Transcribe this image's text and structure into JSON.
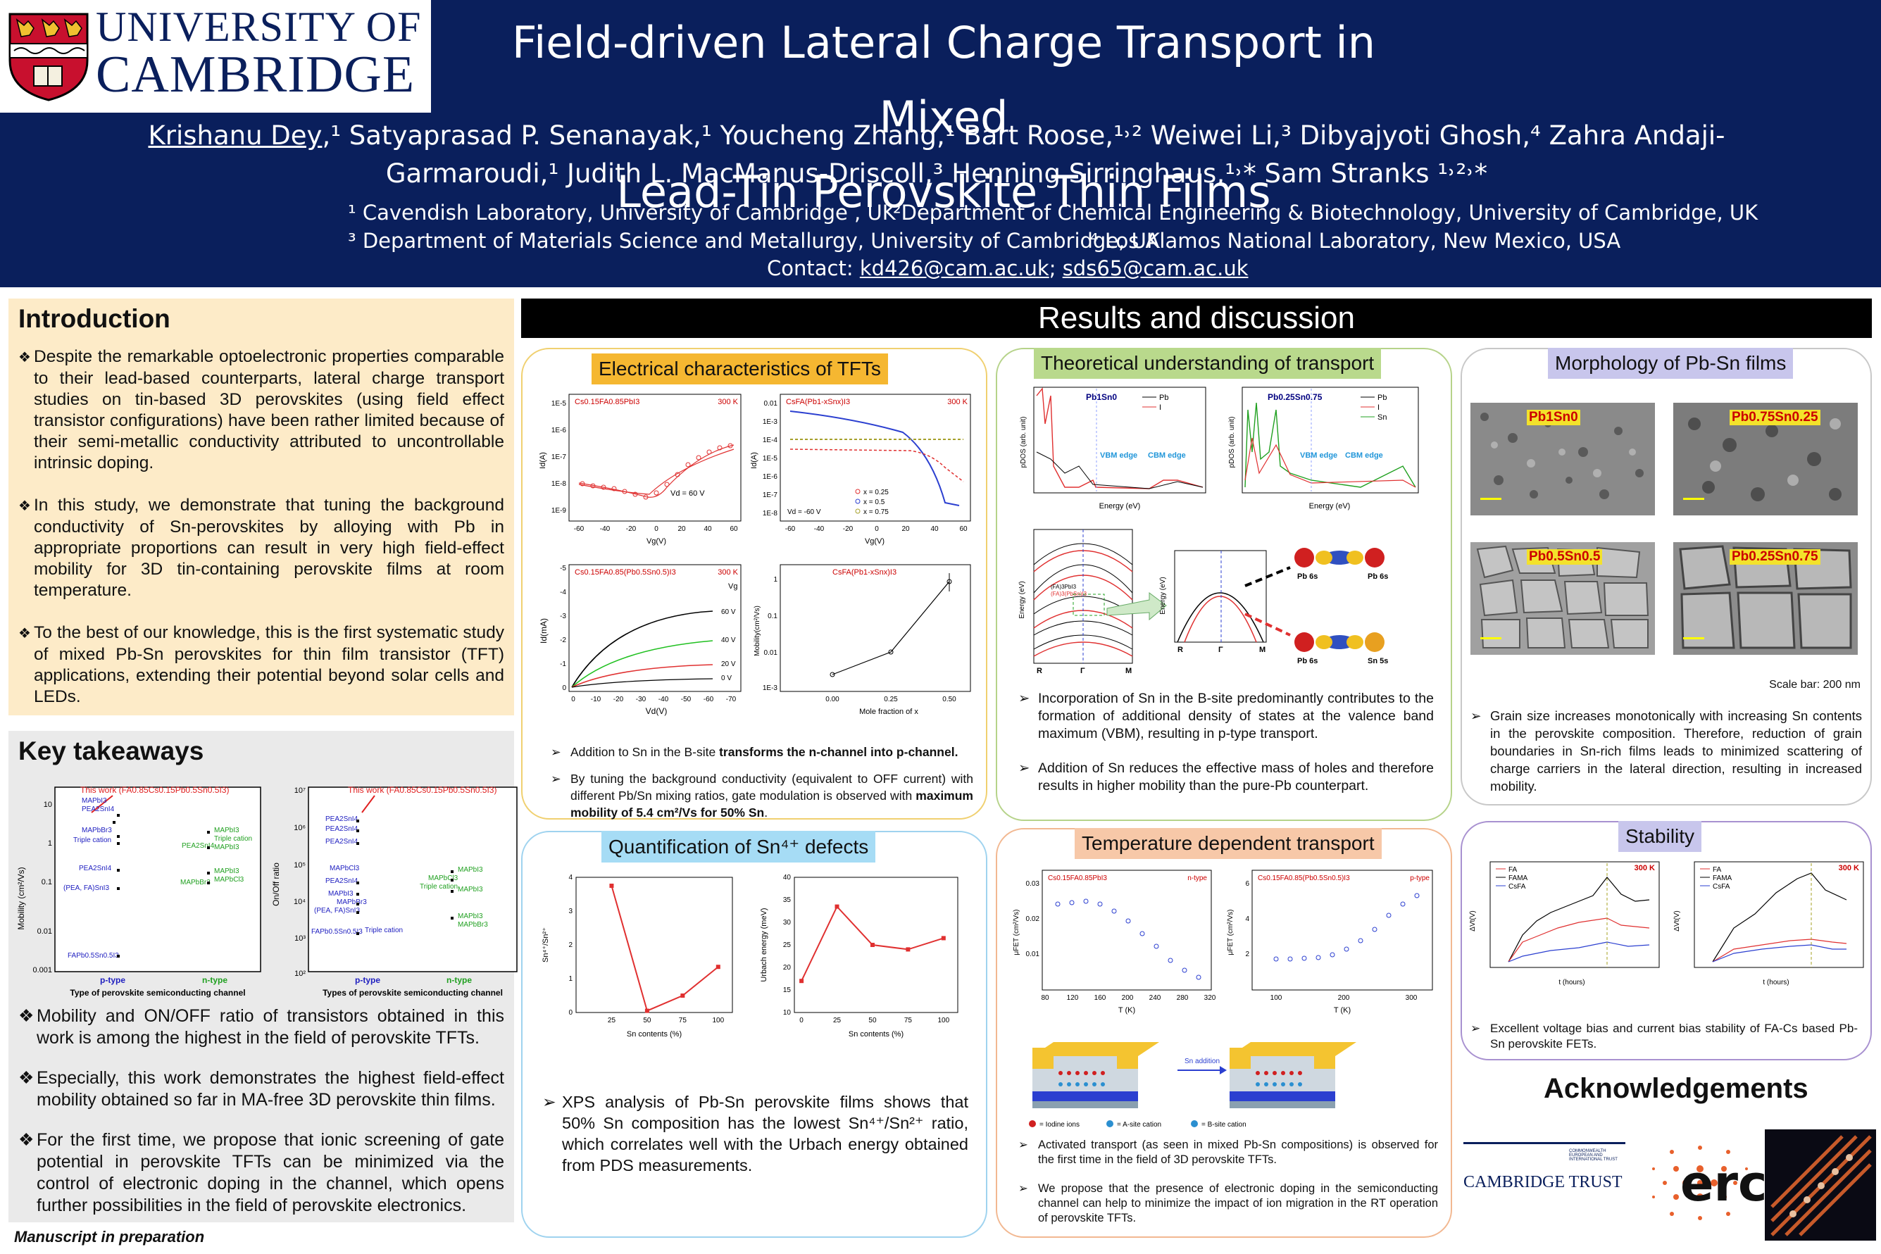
{
  "header": {
    "logo_line1": "UNIVERSITY OF",
    "logo_line2": "CAMBRIDGE",
    "title_line1": "Field-driven Lateral Charge Transport in Mixed",
    "title_line2": "Lead-Tin Perovskite Thin Films",
    "first_author": "Krishanu Dey",
    "authors_line1_rest": ",¹  Satyaprasad P. Senanayak,¹ Youcheng Zhang,¹ Bart Roose,¹˒² Weiwei Li,³ Dibyajyoti Ghosh,⁴ Zahra Andaji-",
    "authors_line2": "Garmaroudi,¹ Judith L. MacManus-Driscoll,³ Henning Sirringhaus,¹˒* Sam Stranks ¹˒²˒*",
    "affil1": "¹ Cavendish Laboratory, University of Cambridge , UK",
    "affil2": "²Department of Chemical Engineering & Biotechnology, University of Cambridge, UK",
    "affil3": "³ Department of Materials Science and Metallurgy, University of Cambridge, UK",
    "affil4": "⁴ Los Alamos National Laboratory, New Mexico, USA",
    "contact_label": "Contact: ",
    "email1": "kd426@cam.ac.uk",
    "email_sep": "; ",
    "email2": "sds65@cam.ac.uk"
  },
  "introduction": {
    "title": "Introduction",
    "bullets": [
      "Despite the remarkable optoelectronic properties comparable to their lead-based counterparts, lateral charge transport studies on tin-based 3D perovskites (using field effect transistor configurations) have been rather limited because of their semi-metallic conductivity attributed to uncontrollable intrinsic doping.",
      "In this study, we demonstrate that tuning the background conductivity of Sn-perovskites by alloying with Pb in appropriate proportions can result in very high field-effect mobility for 3D tin-containing perovskite films at room temperature.",
      "To the best of our knowledge, this is the first systematic study of mixed Pb-Sn perovskites for thin film transistor (TFT) applications, extending their potential beyond solar cells and LEDs."
    ]
  },
  "takeaways": {
    "title": "Key takeaways",
    "bullets": [
      "Mobility and ON/OFF ratio of transistors obtained in this work is among the highest in the field of perovskite TFTs.",
      "Especially, this work demonstrates the highest field-effect mobility obtained so far in MA-free 3D perovskite thin films.",
      "For the first time, we propose that ionic screening of gate potential in perovskite TFTs can be minimized via the control of electronic doping in the channel, which opens further possibilities in the field of perovskite electronics."
    ],
    "manuscript": "Manuscript in preparation",
    "chart_mobility": {
      "this_work": "This work (FA0.85Cs0.15Pb0.5Sn0.5I3)",
      "ylabel": "Mobility (cm²/Vs)",
      "xlabel": "Type of perovskite semiconducting channel",
      "x_ticks": [
        "p-type",
        "n-type"
      ],
      "y_ticks": [
        "10",
        "1",
        "0.1",
        "0.01",
        "0.001"
      ],
      "labels": [
        "MAPbI3",
        "PEA2SnI4",
        "MAPbBr3",
        "Triple cation",
        "PEA2SnI4",
        "(PEA, FA)SnI3",
        "FAPb0.5Sn0.5I3",
        "MAPbI3",
        "PEA2SnI4",
        "PEA2SnI4",
        "Triple cation",
        "MAPbI3",
        "MAPbCl3",
        "MAPbBr3"
      ]
    },
    "chart_onoff": {
      "this_work": "This work (FA0.85Cs0.15Pb0.5Sn0.5I3)",
      "ylabel": "On/Off ratio",
      "xlabel": "Types of perovskite semiconducting channel",
      "x_ticks": [
        "p-type",
        "n-type"
      ],
      "y_ticks": [
        "10⁷",
        "10⁶",
        "10⁵",
        "10⁴",
        "10³",
        "10²"
      ],
      "labels": [
        "PEA2SnI4",
        "PEA2SnI4",
        "PEA2SnI4",
        "MAPbCl3",
        "PEA2SnI4",
        "MAPbI3",
        "MAPbI3",
        "MAPbBr3",
        "(PEA, FA)SnI3",
        "FAPb0.5Sn0.5I3",
        "Triple cation",
        "MAPbI3",
        "MAPbCl3",
        "Triple cation",
        "MAPbI3",
        "MAPbI3",
        "MAPbBr3"
      ]
    }
  },
  "results": {
    "banner": "Results and discussion",
    "electrical": {
      "title": "Electrical characteristics of TFTs",
      "bullet1_pre": "Addition to Sn in the B-site ",
      "bullet1_bold": "transforms the n-channel into p-channel.",
      "bullet2_pre": "By tuning the background conductivity (equivalent to OFF current) with different Pb/Sn mixing ratios, gate modulation is observed with ",
      "bullet2_bold": "maximum mobility of 5.4 cm²/Vs for 50% Sn",
      "bullet2_post": ".",
      "plot1": {
        "label": "Cs0.15FA0.85PbI3",
        "temp": "300 K",
        "vd": "Vd = 60 V",
        "xlabel": "Vg(V)",
        "ylabel": "Id(A)",
        "yticks": [
          "1E-5",
          "1E-6",
          "1E-7",
          "1E-8",
          "1E-9"
        ],
        "xticks": [
          "-60",
          "-40",
          "-20",
          "0",
          "20",
          "40",
          "60"
        ]
      },
      "plot2": {
        "label": "CsFA(Pb1-xSnx)I3",
        "temp": "300 K",
        "vd": "Vd = -60 V",
        "xlabel": "Vg(V)",
        "ylabel": "Id(A)",
        "legend": [
          "x = 0.25",
          "x = 0.5",
          "x = 0.75"
        ],
        "yticks": [
          "0.01",
          "1E-3",
          "1E-4",
          "1E-5",
          "1E-6",
          "1E-7",
          "1E-8"
        ],
        "xticks": [
          "-60",
          "-40",
          "-20",
          "0",
          "20",
          "40",
          "60"
        ]
      },
      "plot3": {
        "label": "Cs0.15FA0.85(Pb0.5Sn0.5)I3",
        "temp": "300 K",
        "vg_label": "Vg",
        "curves": [
          "60 V",
          "40 V",
          "20 V",
          "0 V"
        ],
        "xlabel": "Vd(V)",
        "ylabel": "Id(mA)",
        "yticks": [
          "-5",
          "-4",
          "-3",
          "-2",
          "-1",
          "0"
        ],
        "xticks": [
          "0",
          "-10",
          "-20",
          "-30",
          "-40",
          "-50",
          "-60",
          "-70"
        ]
      },
      "plot4": {
        "label": "CsFA(Pb1-xSnx)I3",
        "xlabel": "Mole fraction of x",
        "ylabel": "Mobility(cm²/Vs)",
        "yticks": [
          "1",
          "0.1",
          "0.01",
          "1E-3"
        ],
        "xticks": [
          "0.00",
          "0.25",
          "0.50"
        ]
      }
    },
    "quantification": {
      "title": "Quantification of Sn⁴⁺ defects",
      "text": "XPS analysis of Pb-Sn perovskite films shows that 50% Sn composition has the lowest Sn⁴⁺/Sn²⁺ ratio, which correlates well with the Urbach energy obtained from PDS measurements."
    },
    "theory": {
      "title": "Theoretical understanding of transport",
      "pdos1_label": "Pb1Sn0",
      "pdos2_label": "Pb0.25Sn0.75",
      "legend1": [
        "Pb",
        "I"
      ],
      "legend2": [
        "Pb",
        "I",
        "Sn"
      ],
      "vbm": "VBM edge",
      "cbm": "CBM edge",
      "energy_label": "Energy (eV)",
      "pdos_label": "pDOS (arb. unit)",
      "band_legend": [
        "(FA)3PbI3",
        "(FA)3(PbSn)I3"
      ],
      "band_ylabel": "Energy (eV)",
      "k_labels": [
        "R",
        "Γ",
        "M"
      ],
      "orbital_labels": [
        "Pb 6s",
        "Pb 6s",
        "Pb 6s",
        "Sn 5s"
      ],
      "bullets": [
        "Incorporation of Sn in the B-site predominantly contributes to the formation of additional density of states at the valence band maximum (VBM), resulting in p-type transport.",
        "Addition of Sn reduces the effective mass of holes and therefore results in higher mobility than the pure-Pb counterpart."
      ]
    },
    "temperature": {
      "title": "Temperature dependent transport",
      "plot1": {
        "label": "Cs0.15FA0.85PbI3",
        "type": "n-type",
        "xlabel": "T (K)",
        "ylabel": "μFET (cm²/Vs)",
        "yticks": [
          "0.03",
          "0.02",
          "0.01"
        ],
        "xticks": [
          "80",
          "120",
          "160",
          "200",
          "240",
          "280",
          "320"
        ]
      },
      "plot2": {
        "label": "Cs0.15FA0.85(Pb0.5Sn0.5)I3",
        "type": "p-type",
        "xlabel": "T (K)",
        "ylabel": "μFET (cm²/Vs)",
        "yticks": [
          "6",
          "4",
          "2"
        ],
        "xticks": [
          "100",
          "200",
          "300"
        ]
      },
      "sn_addition": "Sn addition",
      "legend": [
        "= Iodine ions",
        "= A-site cation",
        "= B-site cation"
      ],
      "bullets": [
        "Activated transport (as seen in mixed Pb-Sn compositions) is observed for the first time in the field of 3D perovskite TFTs.",
        "We propose that the presence of electronic doping in the semiconducting channel can help to minimize the impact of ion migration in the RT operation of perovskite TFTs."
      ]
    },
    "morphology": {
      "title": "Morphology of Pb-Sn films",
      "images": [
        "Pb1Sn0",
        "Pb0.75Sn0.25",
        "Pb0.5Sn0.5",
        "Pb0.25Sn0.75"
      ],
      "scale_bar": "Scale bar: 200 nm",
      "text": "Grain size increases monotonically with increasing Sn contents in the perovskite composition. Therefore, reduction of grain boundaries in Sn-rich films leads to minimized scattering of charge carriers in the lateral direction, resulting in increased mobility."
    },
    "stability": {
      "title": "Stability",
      "legend": [
        "FA",
        "FAMA",
        "CsFA"
      ],
      "temp": "300 K",
      "xlabel": "t (hours)",
      "ylabel": "ΔVt(V)",
      "text": "Excellent voltage bias and current bias stability of FA-Cs based Pb-Sn perovskite FETs."
    }
  },
  "chart_data": [
    {
      "type": "line",
      "title": "",
      "xlabel": "Sn contents (%)",
      "ylabel": "Sn⁴⁺/Sn²⁺",
      "x": [
        25,
        50,
        75,
        100
      ],
      "values": [
        3.75,
        0.05,
        0.5,
        1.35
      ],
      "xlim": [
        0,
        110
      ],
      "ylim": [
        0,
        4
      ],
      "yticks": [
        "0",
        "1",
        "2",
        "3",
        "4"
      ],
      "xticks": [
        "25",
        "50",
        "75",
        "100"
      ],
      "grid": false
    },
    {
      "type": "line",
      "title": "",
      "xlabel": "Sn contents (%)",
      "ylabel": "Urbach energy (meV)",
      "x": [
        0,
        25,
        50,
        75,
        100
      ],
      "values": [
        17,
        33.5,
        25,
        24,
        26.5
      ],
      "xlim": [
        -5,
        110
      ],
      "ylim": [
        10,
        40
      ],
      "yticks": [
        "10",
        "15",
        "20",
        "25",
        "30",
        "35",
        "40"
      ],
      "xticks": [
        "0",
        "25",
        "50",
        "75",
        "100"
      ],
      "grid": false
    }
  ],
  "ack": {
    "title": "Acknowledgements",
    "trust_name": "CAMBRIDGE TRUST",
    "trust_small": "COMMONWEALTH EUROPEAN AND INTERNATIONAL TRUST",
    "erc": "erc"
  },
  "colors": {
    "header_bg": "#0a1f5c",
    "intro_bg": "#fdebc8",
    "takeaways_bg": "#eaeaea",
    "title_orange": "#f5b731",
    "title_green": "#b9d98c",
    "title_blue": "#a6dcf5",
    "title_peach": "#f7c8a8",
    "title_lilac": "#c8c6ec",
    "red": "#e03030",
    "blue": "#2b3fd0"
  }
}
